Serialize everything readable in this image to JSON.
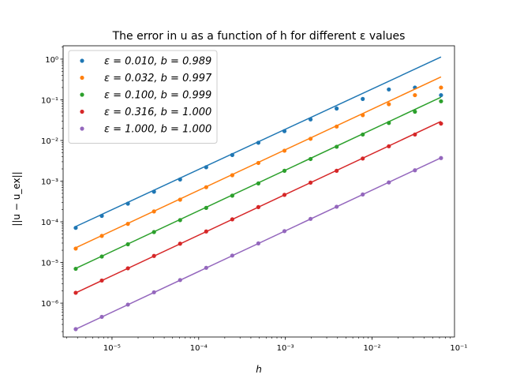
{
  "chart_data": {
    "type": "scatter",
    "title": "The error in u as a function of h for different ε values",
    "xlabel": "h",
    "ylabel": "||u − u_ex||",
    "xscale": "log",
    "yscale": "log",
    "xlim": [
      2.73e-06,
      0.0894
    ],
    "ylim": [
      1.47e-07,
      2.13
    ],
    "x_ticks": [
      {
        "value": 1e-05,
        "label": "10⁻⁵"
      },
      {
        "value": 0.0001,
        "label": "10⁻⁴"
      },
      {
        "value": 0.001,
        "label": "10⁻³"
      },
      {
        "value": 0.01,
        "label": "10⁻²"
      },
      {
        "value": 0.1,
        "label": "10⁻¹"
      }
    ],
    "y_ticks": [
      {
        "value": 1e-06,
        "label": "10⁻⁶"
      },
      {
        "value": 1e-05,
        "label": "10⁻⁵"
      },
      {
        "value": 0.0001,
        "label": "10⁻⁴"
      },
      {
        "value": 0.001,
        "label": "10⁻³"
      },
      {
        "value": 0.01,
        "label": "10⁻²"
      },
      {
        "value": 0.1,
        "label": "10⁻¹"
      },
      {
        "value": 1,
        "label": "10⁰"
      }
    ],
    "grid": false,
    "legend_position": "upper-left",
    "x": [
      3.815e-06,
      7.629e-06,
      1.526e-05,
      3.052e-05,
      6.104e-05,
      0.0001221,
      0.0002441,
      0.0004883,
      0.0009766,
      0.001953,
      0.003906,
      0.007813,
      0.01563,
      0.03125,
      0.0625
    ],
    "series": [
      {
        "name": "ε = 0.010, b = 0.989",
        "color": "#1f77b4",
        "points": [
          7.1e-05,
          0.00014,
          0.00028,
          0.00055,
          0.0011,
          0.0022,
          0.0044,
          0.0088,
          0.017,
          0.033,
          0.061,
          0.105,
          0.18,
          0.2,
          0.13
        ],
        "fit": {
          "a": 17.5,
          "b": 0.989
        }
      },
      {
        "name": "ε = 0.032, b = 0.997",
        "color": "#ff7f0e",
        "points": [
          2.2e-05,
          4.5e-05,
          8.9e-05,
          0.00018,
          0.00035,
          0.00071,
          0.0014,
          0.0028,
          0.0056,
          0.011,
          0.022,
          0.042,
          0.078,
          0.13,
          0.2
        ],
        "fit": {
          "a": 5.8,
          "b": 0.997
        }
      },
      {
        "name": "ε = 0.100, b = 0.999",
        "color": "#2ca02c",
        "points": [
          7e-06,
          1.4e-05,
          2.8e-05,
          5.6e-05,
          0.00011,
          0.00022,
          0.00044,
          0.00088,
          0.0018,
          0.0035,
          0.007,
          0.014,
          0.027,
          0.051,
          0.092
        ],
        "fit": {
          "a": 1.85,
          "b": 0.999
        }
      },
      {
        "name": "ε = 0.316, b = 1.000",
        "color": "#d62728",
        "points": [
          1.8e-06,
          3.6e-06,
          7.2e-06,
          1.45e-05,
          2.9e-05,
          5.8e-05,
          0.000115,
          0.00023,
          0.00046,
          0.00092,
          0.0018,
          0.0036,
          0.0072,
          0.014,
          0.026
        ],
        "fit": {
          "a": 0.47,
          "b": 1.0
        }
      },
      {
        "name": "ε = 1.000, b = 1.000",
        "color": "#9467bd",
        "points": [
          2.3e-07,
          4.6e-07,
          9.2e-07,
          1.85e-06,
          3.7e-06,
          7.4e-06,
          1.48e-05,
          2.95e-05,
          5.9e-05,
          0.000118,
          0.000235,
          0.00047,
          0.00093,
          0.00185,
          0.0037
        ],
        "fit": {
          "a": 0.06,
          "b": 1.0
        }
      }
    ]
  }
}
